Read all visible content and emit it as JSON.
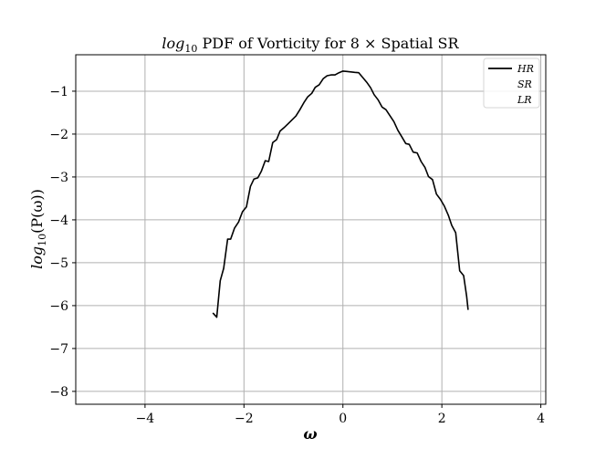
{
  "chart_data": {
    "type": "line",
    "title": "log10 PDF of Vorticity for 8 × Spatial SR",
    "title_parts": {
      "prefix": "log",
      "prefix_sub": "10",
      "rest": " PDF of Vorticity for 8 × Spatial SR"
    },
    "xlabel": "ω",
    "ylabel": "log10(P(ω))",
    "ylabel_parts": {
      "prefix": "log",
      "prefix_sub": "10",
      "rest": "(P(ω))"
    },
    "xlim": [
      -5.4,
      4.1
    ],
    "ylim": [
      -8.3,
      -0.15
    ],
    "xticks": [
      -4,
      -2,
      0,
      2,
      4
    ],
    "xtick_labels": [
      "−4",
      "−2",
      "0",
      "2",
      "4"
    ],
    "yticks": [
      -1,
      -2,
      -3,
      -4,
      -5,
      -6,
      -7,
      -8
    ],
    "ytick_labels": [
      "−1",
      "−2",
      "−3",
      "−4",
      "−5",
      "−6",
      "−7",
      "−8"
    ],
    "grid": true,
    "legend_position": "top-right",
    "colors": {
      "HR": "#000000",
      "SR": "#ffffff",
      "LR": "#ffffff",
      "grid": "#b0b0b0",
      "axes": "#000000"
    },
    "series": [
      {
        "name": "HR",
        "x": [
          -2.63,
          -2.55,
          -2.48,
          -2.41,
          -2.33,
          -2.27,
          -2.19,
          -2.11,
          -2.03,
          -1.95,
          -1.87,
          -1.8,
          -1.72,
          -1.65,
          -1.57,
          -1.5,
          -1.42,
          -1.34,
          -1.27,
          -1.19,
          -1.11,
          -1.03,
          -0.95,
          -0.87,
          -0.79,
          -0.71,
          -0.63,
          -0.56,
          -0.48,
          -0.4,
          -0.32,
          -0.24,
          -0.16,
          -0.08,
          0.0,
          0.08,
          0.16,
          0.24,
          0.32,
          0.4,
          0.48,
          0.56,
          0.63,
          0.71,
          0.79,
          0.87,
          0.95,
          1.03,
          1.11,
          1.19,
          1.27,
          1.34,
          1.42,
          1.5,
          1.58,
          1.66,
          1.73,
          1.81,
          1.89,
          1.97,
          2.05,
          2.13,
          2.2,
          2.28,
          2.36,
          2.44,
          2.5,
          2.53
        ],
        "y": [
          -6.17,
          -6.27,
          -5.42,
          -5.13,
          -4.45,
          -4.45,
          -4.19,
          -4.05,
          -3.81,
          -3.7,
          -3.22,
          -3.05,
          -3.02,
          -2.87,
          -2.62,
          -2.64,
          -2.2,
          -2.13,
          -1.93,
          -1.85,
          -1.76,
          -1.67,
          -1.58,
          -1.43,
          -1.27,
          -1.13,
          -1.05,
          -0.91,
          -0.85,
          -0.71,
          -0.64,
          -0.62,
          -0.62,
          -0.57,
          -0.53,
          -0.54,
          -0.55,
          -0.56,
          -0.57,
          -0.68,
          -0.79,
          -0.92,
          -1.08,
          -1.2,
          -1.37,
          -1.43,
          -1.57,
          -1.71,
          -1.91,
          -2.06,
          -2.22,
          -2.24,
          -2.42,
          -2.44,
          -2.64,
          -2.78,
          -2.99,
          -3.06,
          -3.4,
          -3.52,
          -3.68,
          -3.89,
          -4.13,
          -4.3,
          -5.19,
          -5.3,
          -5.78,
          -6.1
        ]
      },
      {
        "name": "SR",
        "x": [],
        "y": []
      },
      {
        "name": "LR",
        "x": [],
        "y": []
      }
    ],
    "legend": {
      "entries": [
        "HR",
        "SR",
        "LR"
      ]
    }
  }
}
